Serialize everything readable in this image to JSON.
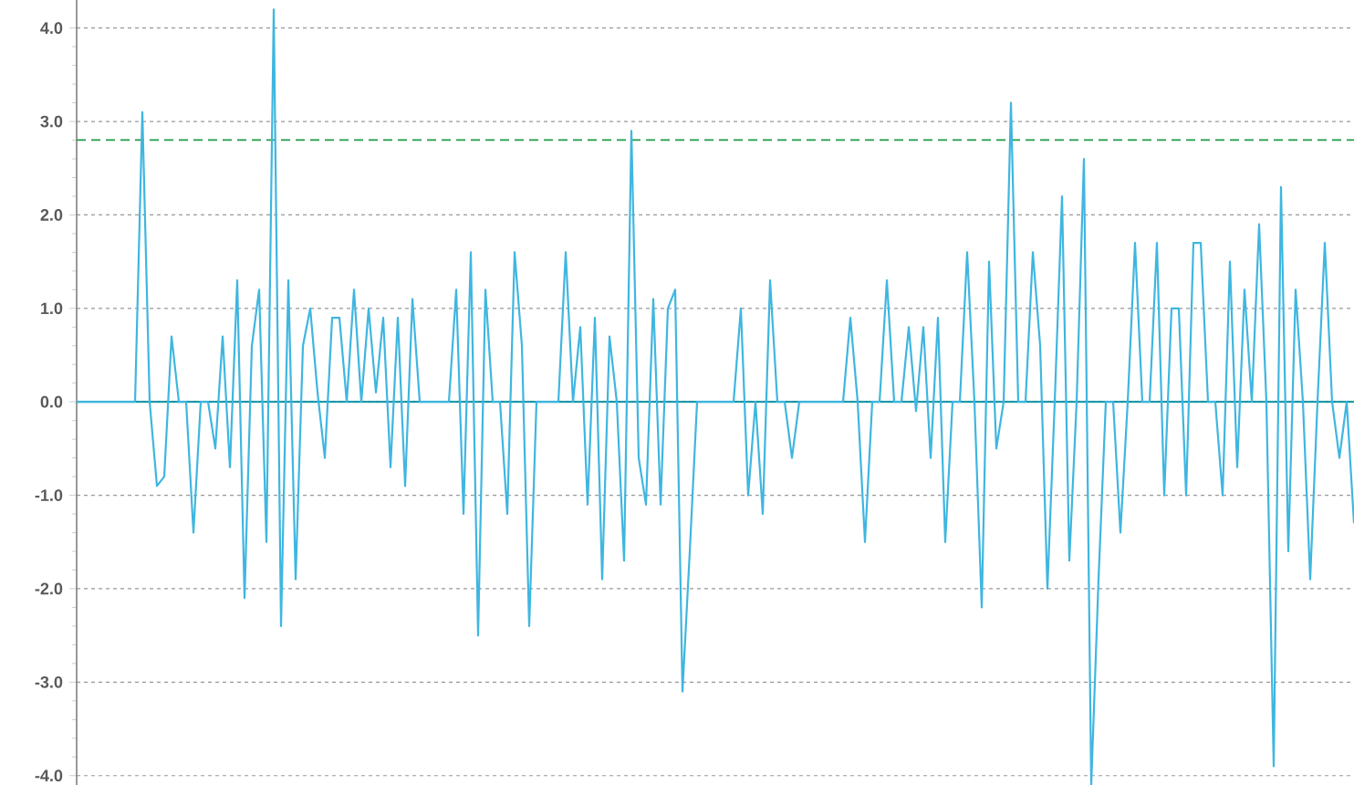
{
  "chart_data": {
    "type": "line",
    "categories": [
      null,
      null,
      null,
      null,
      null,
      null,
      null,
      null,
      null,
      null,
      null,
      null,
      null,
      null,
      null,
      null,
      null,
      null,
      null,
      null,
      null,
      null,
      null,
      null,
      null,
      null,
      null,
      null,
      null,
      null,
      null,
      null,
      null,
      null,
      null,
      null,
      null,
      null,
      null,
      null,
      null,
      null,
      null,
      null,
      null,
      null,
      null,
      null,
      null,
      null,
      null,
      null,
      null,
      null,
      null,
      null,
      null,
      null,
      null,
      null,
      null,
      null,
      null,
      null,
      null,
      null,
      null,
      null,
      null,
      null,
      null,
      null,
      null,
      null,
      null,
      null,
      null,
      null,
      null,
      null,
      null,
      null,
      null,
      null,
      null,
      null,
      null,
      null,
      null,
      null,
      null,
      null,
      null,
      null,
      null,
      null,
      null,
      null,
      null,
      null,
      null,
      null,
      null,
      null,
      null,
      null,
      null,
      null,
      null,
      null,
      null,
      null,
      null,
      null,
      null,
      null,
      null,
      null,
      null,
      null,
      null,
      null,
      null,
      null,
      null,
      null,
      null,
      null,
      null,
      null,
      null,
      null,
      null,
      null,
      null,
      null,
      null,
      null,
      null,
      null,
      null,
      null,
      null,
      null,
      null,
      null,
      null,
      null,
      null,
      null,
      null,
      null,
      null,
      null,
      null,
      null,
      null,
      null,
      null,
      null,
      null,
      null,
      null,
      null,
      null,
      null,
      null,
      null,
      null,
      null,
      null,
      null,
      null,
      null,
      null,
      null
    ],
    "values": [
      0,
      0,
      0,
      0,
      0,
      0,
      0,
      0,
      0,
      3.1,
      0,
      -0.9,
      -0.8,
      0.7,
      0,
      0,
      -1.4,
      0,
      0,
      -0.5,
      0.7,
      -0.7,
      1.3,
      -2.1,
      0.6,
      1.2,
      -1.5,
      4.2,
      -2.4,
      1.3,
      -1.9,
      0.6,
      1.0,
      0.1,
      -0.6,
      0.9,
      0.9,
      0,
      1.2,
      0,
      1.0,
      0.1,
      0.9,
      -0.7,
      0.9,
      -0.9,
      1.1,
      0,
      0,
      0,
      0,
      0,
      1.2,
      -1.2,
      1.6,
      -2.5,
      1.2,
      0,
      0,
      -1.2,
      1.6,
      0.6,
      -2.4,
      0,
      0,
      0,
      0,
      1.6,
      0,
      0.8,
      -1.1,
      0.9,
      -1.9,
      0.7,
      0,
      -1.7,
      2.9,
      -0.6,
      -1.1,
      1.1,
      -1.1,
      1.0,
      1.2,
      -3.1,
      -1.6,
      0,
      0,
      0,
      0,
      0,
      0,
      1.0,
      -1.0,
      0,
      -1.2,
      1.3,
      0,
      0,
      -0.6,
      0,
      0,
      0,
      0,
      0,
      0,
      0,
      0.9,
      0,
      -1.5,
      0,
      0,
      1.3,
      0,
      0,
      0.8,
      -0.1,
      0.8,
      -0.6,
      0.9,
      -1.5,
      0,
      0,
      1.6,
      0,
      -2.2,
      1.5,
      -0.5,
      0,
      3.2,
      0,
      0,
      1.6,
      0.6,
      -2.0,
      0,
      2.2,
      -1.7,
      0,
      2.6,
      -4.1,
      -1.9,
      0,
      0,
      -1.4,
      0,
      1.7,
      0,
      0,
      1.7,
      -1.0,
      1.0,
      1.0,
      -1.0,
      1.7,
      1.7,
      0,
      0,
      -1.0,
      1.5,
      -0.7,
      1.2,
      0,
      1.9,
      0,
      -3.9,
      2.3,
      -1.6,
      1.2,
      0,
      -1.9,
      0,
      1.7,
      0,
      -0.6,
      0,
      -1.3
    ],
    "color": "#3fb6e0",
    "ylim": [
      -4.1,
      4.3
    ],
    "yticks": [
      {
        "value": -4,
        "label": "-4.0"
      },
      {
        "value": -3,
        "label": "-3.0"
      },
      {
        "value": -2,
        "label": "-2.0"
      },
      {
        "value": -1,
        "label": "-1.0"
      },
      {
        "value": 0,
        "label": "0.0"
      },
      {
        "value": 1,
        "label": "1.0"
      },
      {
        "value": 2,
        "label": "2.0"
      },
      {
        "value": 3,
        "label": "3.0"
      },
      {
        "value": 4,
        "label": "4.0"
      }
    ],
    "grid": "y",
    "tick_labels": "y",
    "ref_lines": [
      {
        "axis": "y",
        "value": 0,
        "color": "#008ca0",
        "line_style": "solid"
      },
      {
        "axis": "y",
        "value": 2.8,
        "color": "#1f9a45",
        "line_style": "dashed"
      }
    ]
  }
}
